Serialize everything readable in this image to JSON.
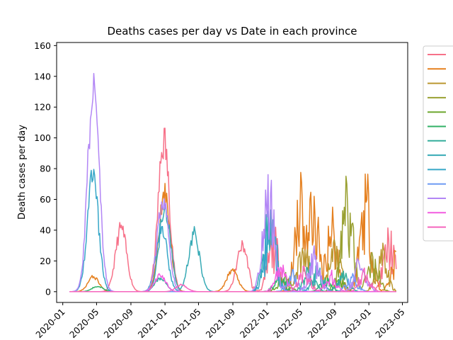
{
  "chart_data": {
    "type": "line",
    "title": "Deaths cases per day vs Date in each province",
    "xlabel": "",
    "ylabel": "Death cases per day",
    "x_ticks": [
      "2020-01",
      "2020-05",
      "2020-09",
      "2021-01",
      "2021-05",
      "2021-09",
      "2022-01",
      "2022-05",
      "2022-09",
      "2023-01",
      "2023-05"
    ],
    "x_range": [
      "2019-12-10",
      "2023-05-20"
    ],
    "y_ticks": [
      0,
      20,
      40,
      60,
      80,
      100,
      120,
      140,
      160
    ],
    "ylim": [
      -7,
      162
    ],
    "grid": false,
    "legend_position": "outside-right",
    "series": [
      {
        "color": "#f77189",
        "peaks": [
          [
            "2020-07-28",
            47
          ],
          [
            "2020-12-28",
            112
          ],
          [
            "2021-10-05",
            34
          ],
          [
            "2022-01-25",
            45
          ],
          [
            "2023-03-15",
            46
          ]
        ]
      },
      {
        "color": "#e5801f",
        "peaks": [
          [
            "2020-04-20",
            11
          ],
          [
            "2020-12-30",
            74
          ],
          [
            "2021-08-30",
            16
          ],
          [
            "2022-05-01",
            91
          ],
          [
            "2022-06-15",
            79
          ],
          [
            "2022-08-20",
            63
          ],
          [
            "2022-12-20",
            90
          ],
          [
            "2023-04-10",
            32
          ]
        ]
      },
      {
        "color": "#bb9831",
        "peaks": [
          [
            "2022-05-10",
            45
          ],
          [
            "2022-09-01",
            40
          ],
          [
            "2023-02-15",
            33
          ]
        ]
      },
      {
        "color": "#99a031",
        "peaks": [
          [
            "2022-10-15",
            83
          ],
          [
            "2023-01-15",
            30
          ]
        ]
      },
      {
        "color": "#6fa831",
        "peaks": [
          [
            "2022-03-01",
            15
          ],
          [
            "2022-09-15",
            11
          ]
        ]
      },
      {
        "color": "#32b166",
        "peaks": [
          [
            "2020-05-05",
            4
          ],
          [
            "2022-02-15",
            12
          ],
          [
            "2022-08-01",
            10
          ]
        ]
      },
      {
        "color": "#35ad9c",
        "peaks": [
          [
            "2020-12-15",
            10
          ],
          [
            "2022-06-01",
            20
          ],
          [
            "2022-10-01",
            14
          ]
        ]
      },
      {
        "color": "#36aab5",
        "peaks": [
          [
            "2021-01-01",
            64
          ],
          [
            "2021-04-15",
            43
          ],
          [
            "2022-01-10",
            70
          ],
          [
            "2022-07-01",
            18
          ]
        ]
      },
      {
        "color": "#37a7c8",
        "peaks": [
          [
            "2020-04-18",
            85
          ],
          [
            "2020-12-20",
            47
          ],
          [
            "2022-01-15",
            65
          ]
        ]
      },
      {
        "color": "#6e9bf4",
        "peaks": [
          [
            "2022-04-01",
            15
          ],
          [
            "2022-11-01",
            12
          ]
        ]
      },
      {
        "color": "#b286f5",
        "peaks": [
          [
            "2020-04-20",
            153
          ],
          [
            "2020-12-25",
            70
          ],
          [
            "2022-01-08",
            91
          ],
          [
            "2022-06-20",
            30
          ],
          [
            "2022-12-01",
            28
          ]
        ]
      },
      {
        "color": "#f25ce0",
        "peaks": [
          [
            "2020-12-15",
            12
          ],
          [
            "2022-02-20",
            20
          ],
          [
            "2022-08-15",
            15
          ]
        ]
      },
      {
        "color": "#f566bd",
        "peaks": [
          [
            "2021-03-01",
            5
          ],
          [
            "2022-05-15",
            18
          ],
          [
            "2022-12-15",
            16
          ]
        ]
      }
    ]
  }
}
